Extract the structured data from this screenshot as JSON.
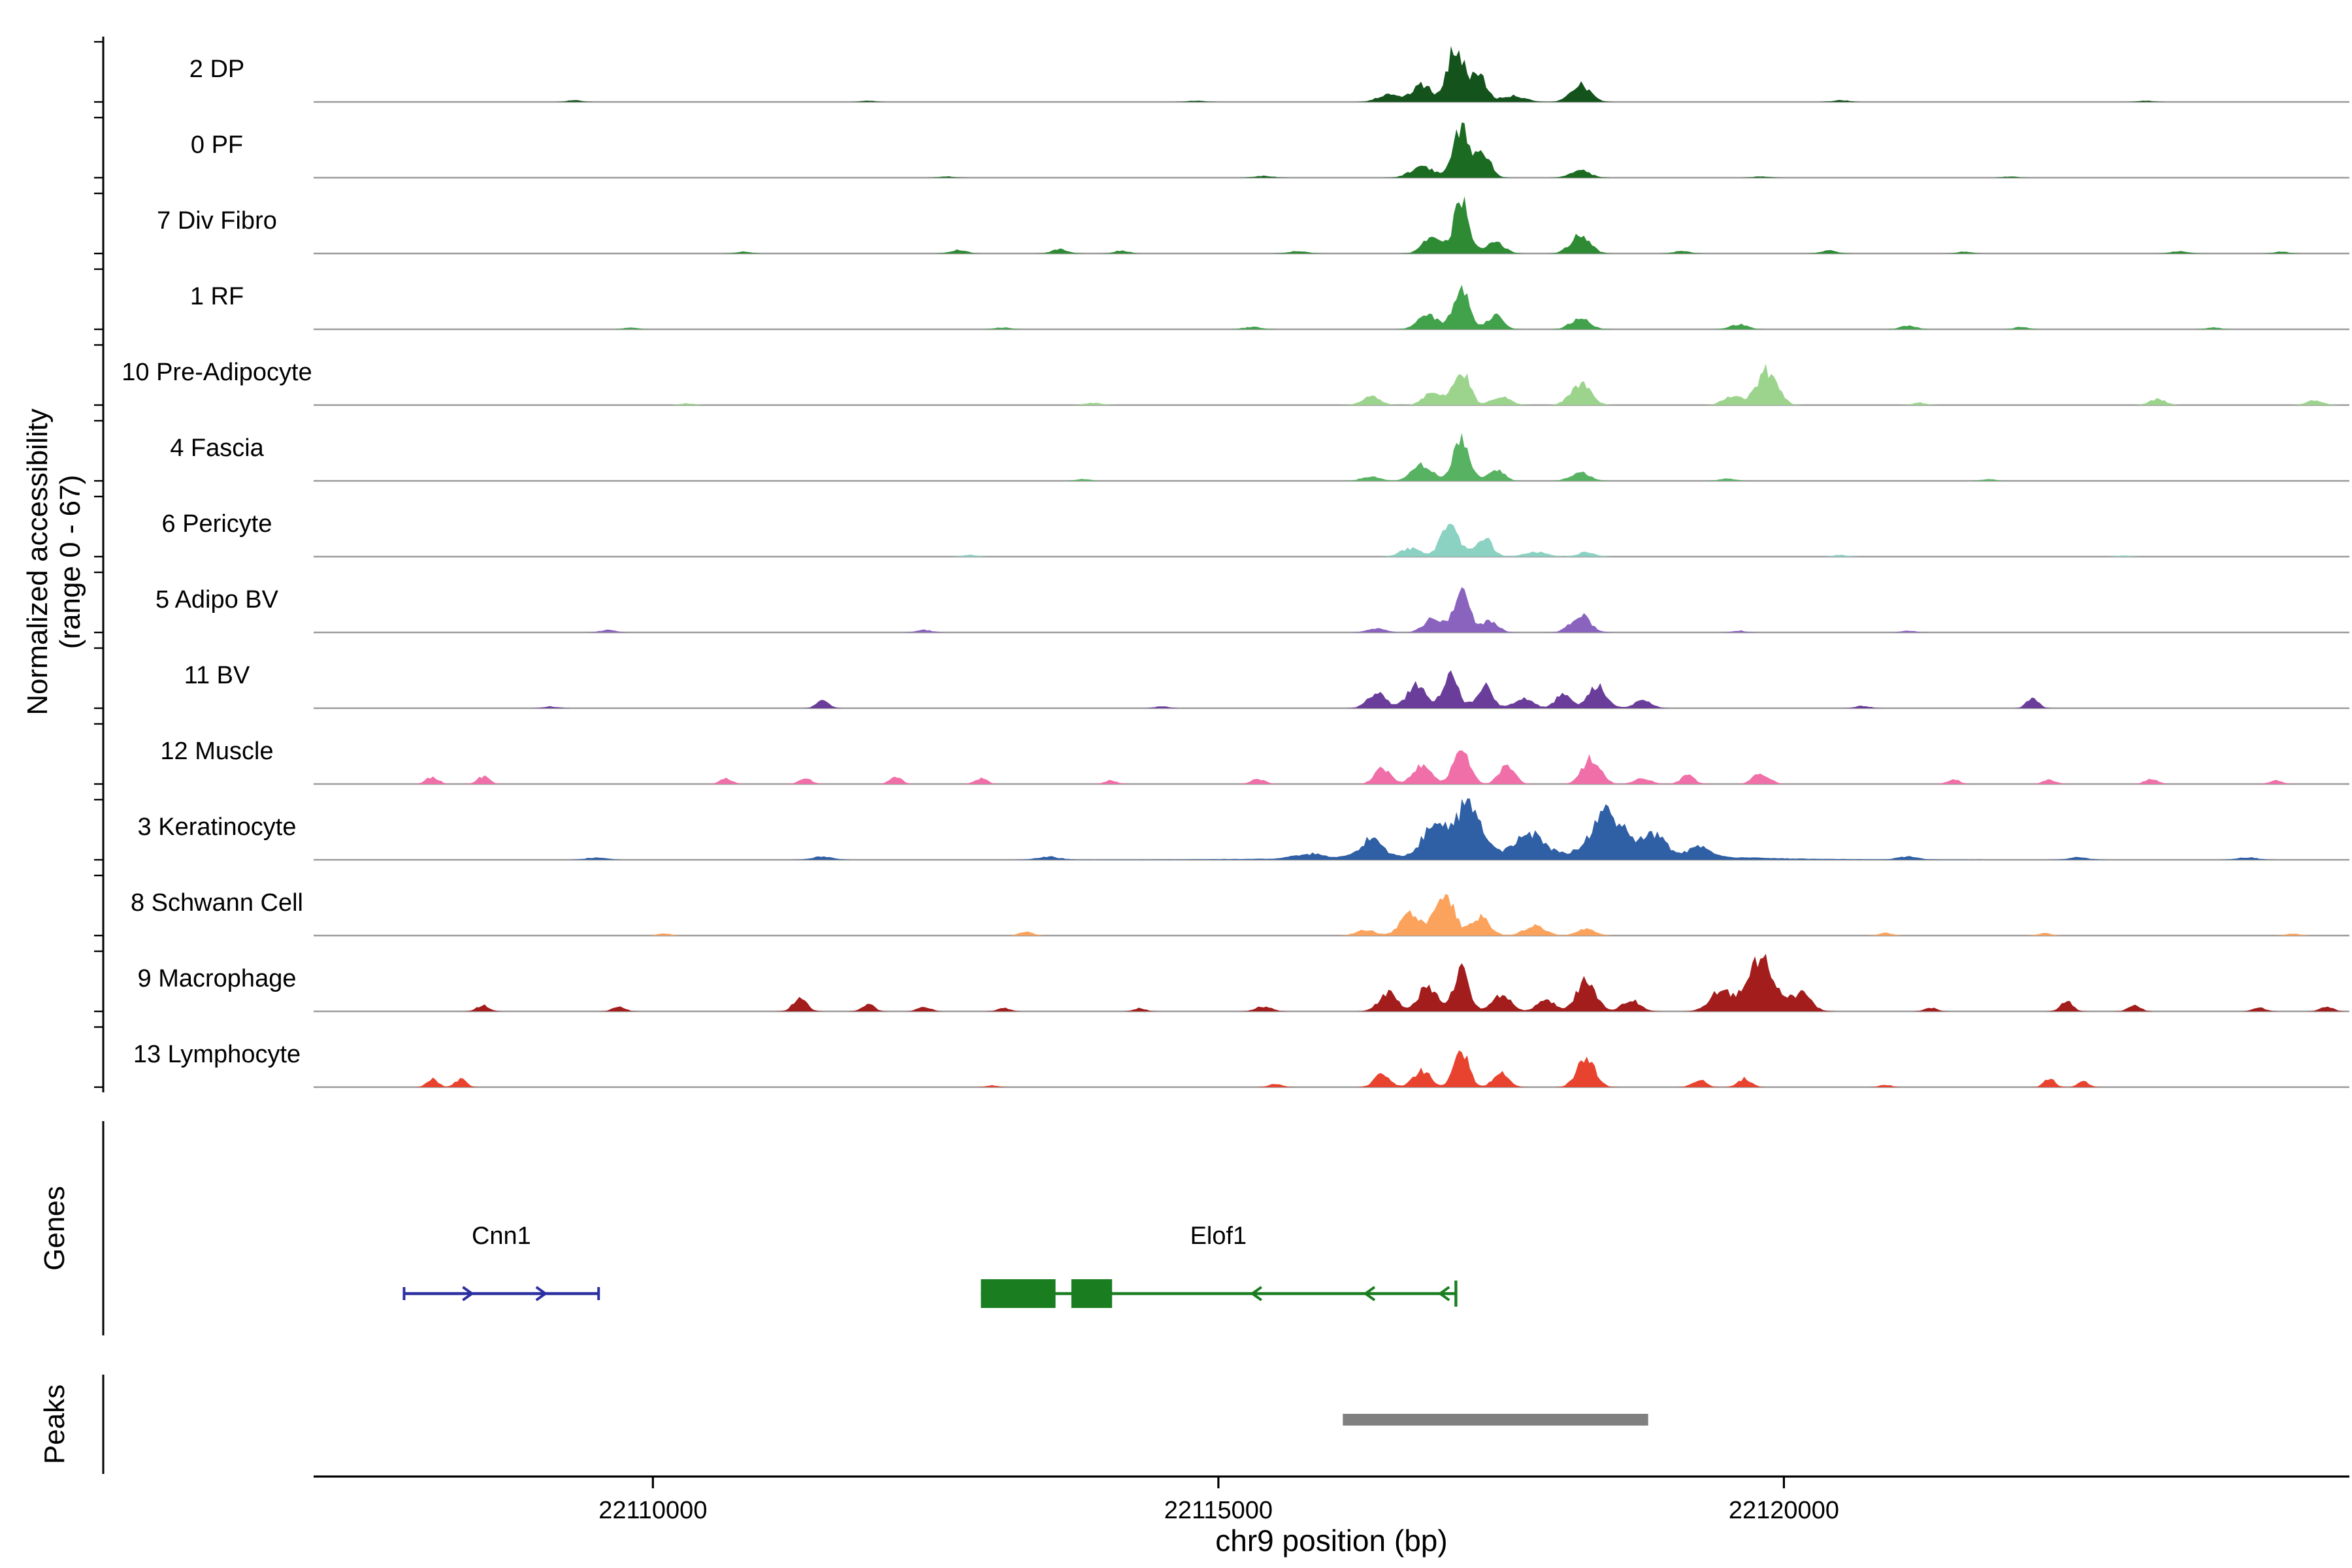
{
  "figure": {
    "y_axis_label_line1": "Normalized accessibility",
    "y_axis_label_line2": "(range 0 - 67)",
    "genes_section_label": "Genes",
    "peaks_section_label": "Peaks",
    "x_axis_title": "chr9 position (bp)"
  },
  "chart_data": {
    "type": "area",
    "xlabel": "chr9 position (bp)",
    "ylabel": "Normalized accessibility (range 0 - 67)",
    "xlim": [
      22107000,
      22125000
    ],
    "track_y_range": [
      0,
      67
    ],
    "baseline_color": "#9B9B9B",
    "x_ticks": [
      {
        "pos": 22110000,
        "label": "22110000"
      },
      {
        "pos": 22115000,
        "label": "22115000"
      },
      {
        "pos": 22120000,
        "label": "22120000"
      }
    ],
    "peak_encoding": "[center_bp, height_fraction_of_track_max, width_sigma_bp]",
    "tracks": [
      {
        "label": "2 DP",
        "color": "#14531C",
        "peaks": [
          [
            22117100,
            0.92,
            70
          ],
          [
            22117300,
            0.45,
            65
          ],
          [
            22116800,
            0.28,
            90
          ],
          [
            22116500,
            0.12,
            90
          ],
          [
            22117600,
            0.1,
            110
          ],
          [
            22118200,
            0.28,
            85
          ],
          [
            22109300,
            0.03,
            60
          ],
          [
            22111900,
            0.02,
            60
          ],
          [
            22114800,
            0.02,
            70
          ],
          [
            22120500,
            0.03,
            70
          ],
          [
            22123200,
            0.02,
            60
          ]
        ]
      },
      {
        "label": "0 PF",
        "color": "#1B6B22",
        "peaks": [
          [
            22117150,
            0.8,
            75
          ],
          [
            22117350,
            0.35,
            65
          ],
          [
            22116800,
            0.18,
            100
          ],
          [
            22118200,
            0.12,
            85
          ],
          [
            22112600,
            0.02,
            70
          ],
          [
            22115400,
            0.03,
            80
          ],
          [
            22119800,
            0.02,
            70
          ],
          [
            22122000,
            0.02,
            60
          ]
        ]
      },
      {
        "label": "7 Div Fibro",
        "color": "#2E8B34",
        "peaks": [
          [
            22117150,
            0.88,
            65
          ],
          [
            22116900,
            0.28,
            85
          ],
          [
            22117450,
            0.18,
            80
          ],
          [
            22118200,
            0.3,
            85
          ],
          [
            22112700,
            0.06,
            70
          ],
          [
            22113600,
            0.07,
            70
          ],
          [
            22114150,
            0.05,
            60
          ],
          [
            22110800,
            0.03,
            60
          ],
          [
            22115700,
            0.04,
            80
          ],
          [
            22119100,
            0.04,
            70
          ],
          [
            22120400,
            0.05,
            70
          ],
          [
            22121600,
            0.03,
            60
          ],
          [
            22123500,
            0.04,
            70
          ],
          [
            22124400,
            0.03,
            60
          ]
        ]
      },
      {
        "label": "1 RF",
        "color": "#42A24C",
        "peaks": [
          [
            22117150,
            0.74,
            70
          ],
          [
            22116850,
            0.22,
            90
          ],
          [
            22117450,
            0.22,
            70
          ],
          [
            22118200,
            0.18,
            85
          ],
          [
            22119600,
            0.08,
            80
          ],
          [
            22109800,
            0.03,
            60
          ],
          [
            22113100,
            0.03,
            70
          ],
          [
            22115300,
            0.04,
            80
          ],
          [
            22121100,
            0.06,
            70
          ],
          [
            22122100,
            0.04,
            60
          ],
          [
            22123800,
            0.03,
            60
          ]
        ]
      },
      {
        "label": "10 Pre-Adipocyte",
        "color": "#9CD48E",
        "peaks": [
          [
            22117150,
            0.58,
            70
          ],
          [
            22116900,
            0.24,
            80
          ],
          [
            22116350,
            0.14,
            80
          ],
          [
            22117500,
            0.14,
            80
          ],
          [
            22118200,
            0.34,
            90
          ],
          [
            22119850,
            0.56,
            90
          ],
          [
            22119550,
            0.16,
            80
          ],
          [
            22123300,
            0.1,
            70
          ],
          [
            22124700,
            0.08,
            70
          ],
          [
            22110300,
            0.03,
            60
          ],
          [
            22113900,
            0.04,
            70
          ],
          [
            22121200,
            0.04,
            60
          ]
        ]
      },
      {
        "label": "4 Fascia",
        "color": "#57B262",
        "peaks": [
          [
            22117150,
            0.68,
            70
          ],
          [
            22116800,
            0.26,
            90
          ],
          [
            22117450,
            0.2,
            70
          ],
          [
            22118200,
            0.14,
            85
          ],
          [
            22116350,
            0.08,
            80
          ],
          [
            22113800,
            0.03,
            60
          ],
          [
            22119500,
            0.04,
            70
          ],
          [
            22121800,
            0.03,
            60
          ]
        ]
      },
      {
        "label": "6 Pericyte",
        "color": "#8BD2C3",
        "peaks": [
          [
            22117050,
            0.52,
            80
          ],
          [
            22117350,
            0.3,
            70
          ],
          [
            22116700,
            0.14,
            90
          ],
          [
            22117800,
            0.08,
            100
          ],
          [
            22118250,
            0.07,
            80
          ],
          [
            22112800,
            0.03,
            60
          ],
          [
            22120500,
            0.03,
            60
          ],
          [
            22123000,
            0.02,
            60
          ]
        ]
      },
      {
        "label": "5 Adipo BV",
        "color": "#8A63BE",
        "peaks": [
          [
            22117150,
            0.78,
            65
          ],
          [
            22116900,
            0.24,
            80
          ],
          [
            22117400,
            0.2,
            70
          ],
          [
            22118200,
            0.28,
            85
          ],
          [
            22116400,
            0.07,
            80
          ],
          [
            22109600,
            0.04,
            70
          ],
          [
            22112400,
            0.04,
            70
          ],
          [
            22119600,
            0.03,
            60
          ],
          [
            22121100,
            0.03,
            60
          ]
        ]
      },
      {
        "label": "11 BV",
        "color": "#6A3D9A",
        "peaks": [
          [
            22116400,
            0.26,
            80
          ],
          [
            22116750,
            0.4,
            80
          ],
          [
            22117050,
            0.52,
            70
          ],
          [
            22117350,
            0.36,
            70
          ],
          [
            22117700,
            0.18,
            80
          ],
          [
            22118050,
            0.22,
            70
          ],
          [
            22118350,
            0.38,
            80
          ],
          [
            22118750,
            0.12,
            80
          ],
          [
            22111500,
            0.14,
            55
          ],
          [
            22122200,
            0.18,
            50
          ],
          [
            22109100,
            0.03,
            60
          ],
          [
            22114500,
            0.03,
            60
          ],
          [
            22120700,
            0.04,
            60
          ]
        ]
      },
      {
        "label": "12 Muscle",
        "color": "#F06FA8",
        "peaks": [
          [
            22117150,
            0.6,
            70
          ],
          [
            22116800,
            0.3,
            80
          ],
          [
            22116450,
            0.24,
            70
          ],
          [
            22117550,
            0.28,
            70
          ],
          [
            22118300,
            0.42,
            80
          ],
          [
            22118750,
            0.1,
            70
          ],
          [
            22119150,
            0.14,
            60
          ],
          [
            22119800,
            0.18,
            70
          ],
          [
            22108050,
            0.12,
            55
          ],
          [
            22108500,
            0.12,
            55
          ],
          [
            22110650,
            0.09,
            55
          ],
          [
            22111350,
            0.09,
            55
          ],
          [
            22112150,
            0.11,
            55
          ],
          [
            22112900,
            0.09,
            55
          ],
          [
            22114050,
            0.06,
            55
          ],
          [
            22115350,
            0.08,
            60
          ],
          [
            22121500,
            0.08,
            55
          ],
          [
            22122350,
            0.07,
            55
          ],
          [
            22123250,
            0.09,
            55
          ],
          [
            22124350,
            0.06,
            55
          ]
        ]
      },
      {
        "label": "3 Keratinocyte",
        "color": "#2F5FA5",
        "peaks": [
          [
            22117200,
            0.8,
            115
          ],
          [
            22116900,
            0.48,
            95
          ],
          [
            22116350,
            0.28,
            90
          ],
          [
            22117750,
            0.34,
            115
          ],
          [
            22118450,
            0.68,
            135
          ],
          [
            22118850,
            0.34,
            100
          ],
          [
            22119250,
            0.15,
            100
          ],
          [
            22117800,
            0.1,
            1300
          ],
          [
            22115800,
            0.07,
            120
          ],
          [
            22113500,
            0.05,
            100
          ],
          [
            22111500,
            0.05,
            90
          ],
          [
            22109500,
            0.04,
            90
          ],
          [
            22121100,
            0.05,
            90
          ],
          [
            22122600,
            0.04,
            90
          ],
          [
            22124100,
            0.04,
            90
          ]
        ]
      },
      {
        "label": "8 Schwann Cell",
        "color": "#FBA35D",
        "peaks": [
          [
            22117000,
            0.66,
            85
          ],
          [
            22116700,
            0.34,
            90
          ],
          [
            22117320,
            0.3,
            80
          ],
          [
            22117800,
            0.17,
            90
          ],
          [
            22118250,
            0.12,
            80
          ],
          [
            22116300,
            0.1,
            80
          ],
          [
            22113300,
            0.06,
            60
          ],
          [
            22110100,
            0.03,
            60
          ],
          [
            22120900,
            0.04,
            60
          ],
          [
            22122300,
            0.04,
            60
          ],
          [
            22124500,
            0.03,
            60
          ]
        ]
      },
      {
        "label": "9 Macrophage",
        "color": "#A31D1D",
        "peaks": [
          [
            22116500,
            0.3,
            80
          ],
          [
            22116850,
            0.42,
            80
          ],
          [
            22117150,
            0.72,
            65
          ],
          [
            22117500,
            0.28,
            80
          ],
          [
            22117900,
            0.18,
            80
          ],
          [
            22118250,
            0.5,
            85
          ],
          [
            22118650,
            0.18,
            80
          ],
          [
            22119450,
            0.34,
            100
          ],
          [
            22119800,
            0.95,
            110
          ],
          [
            22120150,
            0.28,
            90
          ],
          [
            22108500,
            0.1,
            55
          ],
          [
            22109700,
            0.08,
            55
          ],
          [
            22111300,
            0.22,
            60
          ],
          [
            22111900,
            0.12,
            55
          ],
          [
            22112400,
            0.08,
            55
          ],
          [
            22113100,
            0.06,
            55
          ],
          [
            22114300,
            0.05,
            55
          ],
          [
            22115400,
            0.08,
            70
          ],
          [
            22121300,
            0.06,
            55
          ],
          [
            22122500,
            0.16,
            55
          ],
          [
            22123100,
            0.1,
            55
          ],
          [
            22124200,
            0.06,
            55
          ],
          [
            22124800,
            0.08,
            55
          ]
        ]
      },
      {
        "label": "13 Lymphocyte",
        "color": "#E8432F",
        "peaks": [
          [
            22116450,
            0.22,
            70
          ],
          [
            22116800,
            0.28,
            75
          ],
          [
            22117150,
            0.58,
            65
          ],
          [
            22117500,
            0.22,
            70
          ],
          [
            22118250,
            0.48,
            80
          ],
          [
            22119250,
            0.12,
            60
          ],
          [
            22119650,
            0.14,
            60
          ],
          [
            22108050,
            0.14,
            50
          ],
          [
            22108300,
            0.13,
            50
          ],
          [
            22122350,
            0.13,
            50
          ],
          [
            22122650,
            0.09,
            50
          ],
          [
            22115500,
            0.05,
            60
          ],
          [
            22113000,
            0.03,
            50
          ],
          [
            22120900,
            0.04,
            50
          ]
        ]
      }
    ],
    "genes": [
      {
        "name": "Cnn1",
        "color": "#2B2FA0",
        "strand": "+",
        "start": 22107800,
        "end": 22109520,
        "exons": [],
        "arrows": [
          22108400,
          22109050
        ]
      },
      {
        "name": "Elof1",
        "color": "#1A7E20",
        "strand": "-",
        "start": 22112900,
        "end": 22117100,
        "exons": [
          [
            22112900,
            22113560
          ],
          [
            22113700,
            22114060
          ]
        ],
        "arrows": [
          22115300,
          22116300,
          22116960
        ]
      }
    ],
    "peaks_track": {
      "color": "#808080",
      "regions": [
        [
          22116100,
          22118800
        ]
      ]
    }
  }
}
